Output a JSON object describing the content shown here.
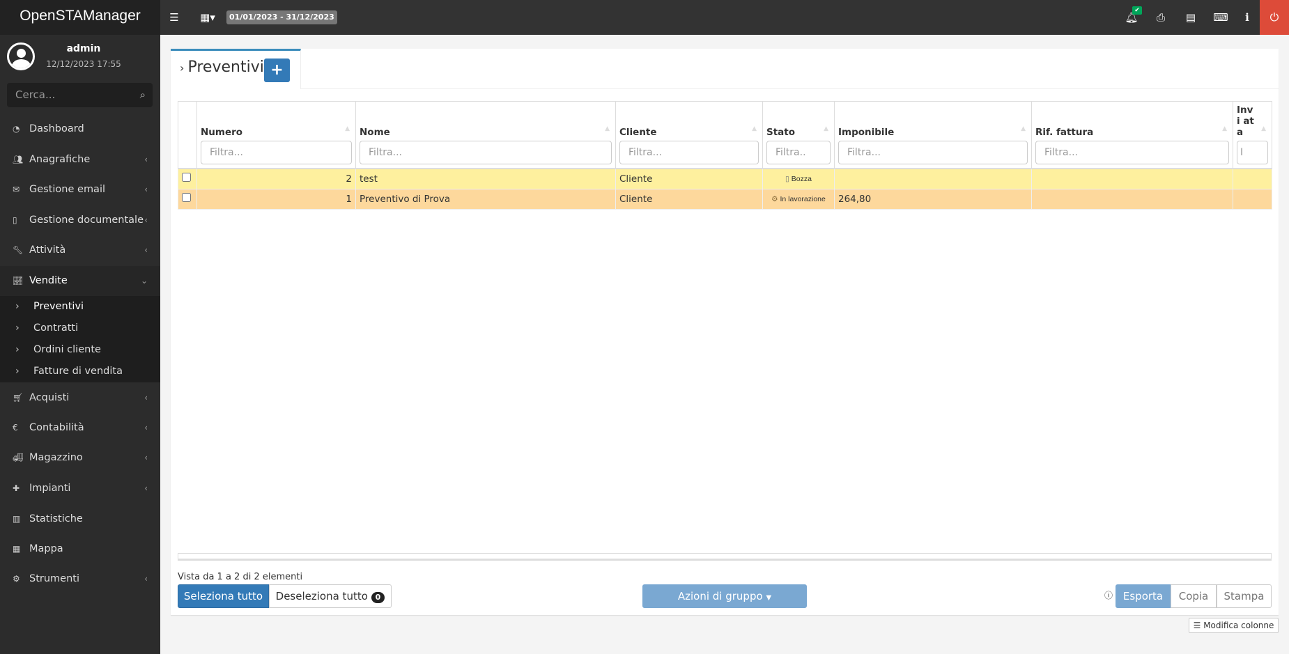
{
  "app": {
    "title": "OpenSTAManager",
    "date_range": "01/01/2023 - 31/12/2023",
    "notification_badge": "✔"
  },
  "user": {
    "name": "admin",
    "datetime": "12/12/2023 17:55"
  },
  "search": {
    "placeholder": "Cerca..."
  },
  "menu": [
    {
      "label": "Dashboard",
      "icon": "dashboard-icon"
    },
    {
      "label": "Anagrafiche",
      "icon": "users-icon"
    },
    {
      "label": "Gestione email",
      "icon": "envelope-icon"
    },
    {
      "label": "Gestione documentale",
      "icon": "file-icon"
    },
    {
      "label": "Attività",
      "icon": "wrench-icon"
    },
    {
      "label": "Vendite",
      "icon": "line-chart-icon"
    },
    {
      "label": "Acquisti",
      "icon": "cart-icon"
    },
    {
      "label": "Contabilità",
      "icon": "euro-icon"
    },
    {
      "label": "Magazzino",
      "icon": "truck-icon"
    },
    {
      "label": "Impianti",
      "icon": "puzzle-icon"
    },
    {
      "label": "Statistiche",
      "icon": "bar-chart-icon"
    },
    {
      "label": "Mappa",
      "icon": "map-icon"
    },
    {
      "label": "Strumenti",
      "icon": "cog-icon"
    }
  ],
  "submenu": [
    "Preventivi",
    "Contratti",
    "Ordini cliente",
    "Fatture di vendita"
  ],
  "page": {
    "title": "Preventivi",
    "add": "+"
  },
  "table": {
    "columns": [
      "Numero",
      "Nome",
      "Cliente",
      "Stato",
      "Imponibile",
      "Rif. fattura",
      "Invi ata"
    ],
    "filters": [
      "Filtra...",
      "Filtra...",
      "Filtra...",
      "Filtra..",
      "Filtra...",
      "Filtra...",
      "I"
    ],
    "rows": [
      {
        "numero": "2",
        "nome": "test",
        "cliente": "Cliente",
        "stato": "Bozza",
        "imponibile": "",
        "rif": "",
        "inviata": ""
      },
      {
        "numero": "1",
        "nome": "Preventivo di Prova",
        "cliente": "Cliente",
        "stato": "In lavorazione",
        "imponibile": "264,80",
        "rif": "",
        "inviata": ""
      }
    ]
  },
  "footer": {
    "info": "Vista da 1 a 2 di 2 elementi",
    "select_all": "Seleziona tutto",
    "deselect_all": "Deseleziona tutto",
    "selected_count": "0",
    "group_actions": "Azioni di gruppo",
    "export": "Esporta",
    "copy": "Copia",
    "print": "Stampa",
    "edit_columns": "Modifica colonne"
  },
  "colors": {
    "accent": "#3c8dbc",
    "draft_row": "#fef09e",
    "working_row": "#fdd89c",
    "logout": "#dd4b39"
  }
}
